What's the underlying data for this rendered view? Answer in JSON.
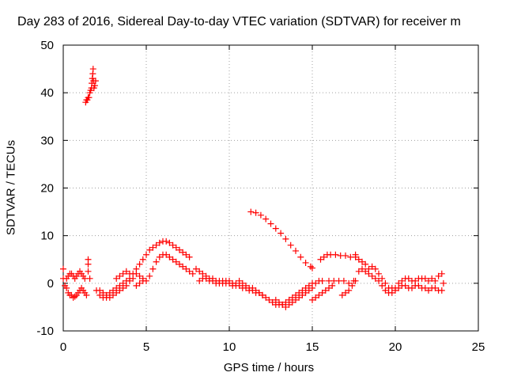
{
  "chart_data": {
    "type": "scatter",
    "title": "Day 283 of 2016, Sidereal Day-to-day VTEC variation (SDTVAR) for receiver m",
    "xlabel": "GPS time / hours",
    "ylabel": "SDTVAR / TECUs",
    "xlim": [
      0,
      25
    ],
    "ylim": [
      -10,
      50
    ],
    "x_ticks": [
      "0",
      "5",
      "10",
      "15",
      "20",
      "25"
    ],
    "y_ticks": [
      "-10",
      "0",
      "10",
      "20",
      "30",
      "40",
      "50"
    ],
    "x_tick_values": [
      0,
      5,
      10,
      15,
      20,
      25
    ],
    "y_tick_values": [
      -10,
      0,
      10,
      20,
      30,
      40,
      50
    ],
    "grid": true,
    "marker": "plus",
    "color": "#ff0000",
    "series": [
      {
        "points": [
          [
            0.0,
            3.0
          ],
          [
            0.0,
            1.0
          ],
          [
            0.1,
            -0.5
          ],
          [
            0.2,
            -1.0
          ],
          [
            0.3,
            -2.0
          ],
          [
            0.4,
            -2.5
          ],
          [
            0.5,
            -2.5
          ],
          [
            0.6,
            -3.0
          ],
          [
            0.7,
            -2.8
          ],
          [
            0.8,
            -2.5
          ],
          [
            0.9,
            -2.0
          ],
          [
            1.0,
            -1.5
          ],
          [
            1.1,
            -1.0
          ],
          [
            1.2,
            -1.5
          ],
          [
            1.3,
            -2.0
          ],
          [
            1.4,
            -2.5
          ],
          [
            0.2,
            1.0
          ],
          [
            0.3,
            1.5
          ],
          [
            0.4,
            2.0
          ],
          [
            0.5,
            2.0
          ],
          [
            0.6,
            1.5
          ],
          [
            0.7,
            1.0
          ],
          [
            0.8,
            1.5
          ],
          [
            0.9,
            2.0
          ],
          [
            1.0,
            2.5
          ],
          [
            1.1,
            2.0
          ],
          [
            1.2,
            1.5
          ],
          [
            1.3,
            1.0
          ],
          [
            1.5,
            4.0
          ],
          [
            1.5,
            5.0
          ],
          [
            1.5,
            2.5
          ],
          [
            1.6,
            1.0
          ],
          [
            1.35,
            38.0
          ],
          [
            1.4,
            38.5
          ],
          [
            1.45,
            38.5
          ],
          [
            1.5,
            39.0
          ],
          [
            1.55,
            39.0
          ],
          [
            1.6,
            40.0
          ],
          [
            1.65,
            40.5
          ],
          [
            1.7,
            41.0
          ],
          [
            1.72,
            42.0
          ],
          [
            1.75,
            43.0
          ],
          [
            1.78,
            44.0
          ],
          [
            1.8,
            45.0
          ],
          [
            1.82,
            42.5
          ],
          [
            1.85,
            41.0
          ],
          [
            1.9,
            41.5
          ],
          [
            1.95,
            42.5
          ],
          [
            2.0,
            -1.5
          ],
          [
            2.2,
            -2.5
          ],
          [
            2.4,
            -3.0
          ],
          [
            2.6,
            -2.5
          ],
          [
            2.8,
            -2.0
          ],
          [
            3.0,
            -1.5
          ],
          [
            3.2,
            -1.0
          ],
          [
            3.4,
            -0.5
          ],
          [
            3.6,
            0.0
          ],
          [
            3.8,
            0.5
          ],
          [
            4.0,
            1.0
          ],
          [
            2.2,
            -1.5
          ],
          [
            2.4,
            -2.0
          ],
          [
            2.6,
            -3.0
          ],
          [
            2.8,
            -3.0
          ],
          [
            3.0,
            -2.5
          ],
          [
            3.2,
            -2.0
          ],
          [
            3.4,
            -1.5
          ],
          [
            3.6,
            -1.0
          ],
          [
            3.8,
            -0.5
          ],
          [
            4.0,
            0.5
          ],
          [
            3.2,
            1.0
          ],
          [
            3.4,
            1.5
          ],
          [
            3.6,
            2.0
          ],
          [
            3.8,
            2.5
          ],
          [
            4.0,
            2.0
          ],
          [
            4.2,
            2.0
          ],
          [
            4.4,
            3.0
          ],
          [
            4.6,
            4.0
          ],
          [
            4.8,
            5.0
          ],
          [
            5.0,
            6.0
          ],
          [
            5.2,
            7.0
          ],
          [
            5.4,
            7.5
          ],
          [
            5.6,
            8.0
          ],
          [
            5.8,
            8.5
          ],
          [
            6.0,
            8.8
          ],
          [
            6.2,
            8.8
          ],
          [
            6.4,
            8.5
          ],
          [
            6.6,
            8.0
          ],
          [
            6.8,
            7.5
          ],
          [
            7.0,
            7.0
          ],
          [
            7.2,
            6.5
          ],
          [
            7.4,
            6.0
          ],
          [
            7.6,
            5.5
          ],
          [
            4.2,
            1.0
          ],
          [
            4.4,
            2.0
          ],
          [
            4.6,
            1.5
          ],
          [
            4.8,
            1.0
          ],
          [
            5.0,
            0.5
          ],
          [
            5.2,
            1.5
          ],
          [
            5.4,
            3.0
          ],
          [
            5.6,
            4.5
          ],
          [
            5.8,
            5.5
          ],
          [
            6.0,
            6.0
          ],
          [
            6.2,
            6.0
          ],
          [
            6.4,
            5.5
          ],
          [
            6.6,
            5.0
          ],
          [
            6.8,
            4.5
          ],
          [
            7.0,
            4.0
          ],
          [
            7.2,
            3.5
          ],
          [
            7.4,
            3.0
          ],
          [
            7.6,
            2.5
          ],
          [
            7.8,
            2.0
          ],
          [
            4.4,
            -0.5
          ],
          [
            4.6,
            0.0
          ],
          [
            4.8,
            0.5
          ],
          [
            8.0,
            3.0
          ],
          [
            8.2,
            2.5
          ],
          [
            8.4,
            2.0
          ],
          [
            8.6,
            1.5
          ],
          [
            8.8,
            1.0
          ],
          [
            9.0,
            1.0
          ],
          [
            9.2,
            0.5
          ],
          [
            9.4,
            0.5
          ],
          [
            9.6,
            0.0
          ],
          [
            9.8,
            0.0
          ],
          [
            10.0,
            0.0
          ],
          [
            10.2,
            -0.5
          ],
          [
            10.4,
            -0.5
          ],
          [
            10.6,
            -0.5
          ],
          [
            10.8,
            -1.0
          ],
          [
            11.0,
            -1.0
          ],
          [
            11.2,
            -1.5
          ],
          [
            11.4,
            -1.5
          ],
          [
            11.6,
            -2.0
          ],
          [
            11.8,
            -2.0
          ],
          [
            12.0,
            -2.5
          ],
          [
            12.2,
            -3.0
          ],
          [
            12.4,
            -3.5
          ],
          [
            12.6,
            -4.0
          ],
          [
            12.8,
            -4.5
          ],
          [
            13.0,
            -4.5
          ],
          [
            13.2,
            -4.5
          ],
          [
            13.4,
            -4.0
          ],
          [
            13.6,
            -3.5
          ],
          [
            8.2,
            0.5
          ],
          [
            8.4,
            1.0
          ],
          [
            8.6,
            1.0
          ],
          [
            8.8,
            0.5
          ],
          [
            9.0,
            0.5
          ],
          [
            9.2,
            0.0
          ],
          [
            9.4,
            0.0
          ],
          [
            9.6,
            0.5
          ],
          [
            9.8,
            0.5
          ],
          [
            10.0,
            0.5
          ],
          [
            10.2,
            0.0
          ],
          [
            10.4,
            0.0
          ],
          [
            10.6,
            0.5
          ],
          [
            10.8,
            0.0
          ],
          [
            11.0,
            -0.5
          ],
          [
            11.2,
            -1.0
          ],
          [
            11.4,
            -1.0
          ],
          [
            11.6,
            -1.5
          ],
          [
            11.8,
            -2.0
          ],
          [
            12.0,
            -2.5
          ],
          [
            11.3,
            15.0
          ],
          [
            11.6,
            14.8
          ],
          [
            11.9,
            14.3
          ],
          [
            12.2,
            13.5
          ],
          [
            12.5,
            12.5
          ],
          [
            12.8,
            11.5
          ],
          [
            13.1,
            10.5
          ],
          [
            13.4,
            9.3
          ],
          [
            13.7,
            8.0
          ],
          [
            14.0,
            6.8
          ],
          [
            14.3,
            5.5
          ],
          [
            14.6,
            4.3
          ],
          [
            14.9,
            3.5
          ],
          [
            15.0,
            3.2
          ],
          [
            12.8,
            -3.5
          ],
          [
            13.0,
            -4.0
          ],
          [
            13.2,
            -4.5
          ],
          [
            13.4,
            -5.0
          ],
          [
            13.6,
            -4.5
          ],
          [
            13.8,
            -4.0
          ],
          [
            14.0,
            -3.5
          ],
          [
            14.2,
            -3.0
          ],
          [
            14.4,
            -2.5
          ],
          [
            14.6,
            -2.0
          ],
          [
            14.8,
            -1.5
          ],
          [
            15.0,
            -1.0
          ],
          [
            13.8,
            -3.0
          ],
          [
            14.0,
            -2.5
          ],
          [
            14.2,
            -2.0
          ],
          [
            14.4,
            -1.5
          ],
          [
            14.6,
            -1.0
          ],
          [
            14.8,
            -0.5
          ],
          [
            15.0,
            0.0
          ],
          [
            15.2,
            0.0
          ],
          [
            15.4,
            0.5
          ],
          [
            15.6,
            0.5
          ],
          [
            15.0,
            -3.5
          ],
          [
            15.2,
            -3.0
          ],
          [
            15.4,
            -2.5
          ],
          [
            15.6,
            -2.0
          ],
          [
            15.8,
            -1.5
          ],
          [
            16.0,
            -1.0
          ],
          [
            16.2,
            -0.5
          ],
          [
            15.5,
            5.0
          ],
          [
            15.7,
            5.5
          ],
          [
            15.9,
            6.0
          ],
          [
            16.1,
            6.0
          ],
          [
            16.4,
            6.0
          ],
          [
            16.7,
            5.8
          ],
          [
            17.0,
            5.8
          ],
          [
            17.3,
            5.5
          ],
          [
            17.6,
            5.5
          ],
          [
            16.0,
            0.5
          ],
          [
            16.3,
            0.5
          ],
          [
            16.6,
            0.5
          ],
          [
            16.9,
            0.5
          ],
          [
            17.2,
            0.0
          ],
          [
            17.5,
            0.5
          ],
          [
            16.8,
            -2.5
          ],
          [
            17.0,
            -2.0
          ],
          [
            17.2,
            -1.5
          ],
          [
            17.4,
            -0.5
          ],
          [
            17.6,
            0.5
          ],
          [
            17.6,
            6.0
          ],
          [
            17.8,
            5.0
          ],
          [
            18.0,
            4.5
          ],
          [
            18.2,
            4.0
          ],
          [
            18.4,
            3.0
          ],
          [
            18.6,
            3.5
          ],
          [
            18.8,
            3.0
          ],
          [
            19.0,
            2.0
          ],
          [
            19.2,
            1.0
          ],
          [
            19.4,
            0.0
          ],
          [
            19.6,
            -1.0
          ],
          [
            19.8,
            -1.0
          ],
          [
            20.0,
            -1.0
          ],
          [
            20.2,
            0.0
          ],
          [
            20.4,
            0.5
          ],
          [
            20.6,
            1.0
          ],
          [
            20.8,
            1.0
          ],
          [
            21.0,
            0.5
          ],
          [
            21.2,
            0.5
          ],
          [
            21.4,
            1.0
          ],
          [
            21.6,
            1.0
          ],
          [
            21.8,
            1.0
          ],
          [
            22.0,
            0.5
          ],
          [
            22.2,
            1.0
          ],
          [
            22.4,
            0.5
          ],
          [
            22.6,
            1.5
          ],
          [
            22.8,
            2.0
          ],
          [
            17.8,
            2.5
          ],
          [
            18.0,
            3.0
          ],
          [
            18.2,
            2.5
          ],
          [
            18.4,
            2.0
          ],
          [
            18.6,
            1.5
          ],
          [
            18.8,
            1.0
          ],
          [
            19.0,
            0.5
          ],
          [
            19.2,
            -0.5
          ],
          [
            19.4,
            -1.5
          ],
          [
            19.6,
            -2.0
          ],
          [
            19.8,
            -2.0
          ],
          [
            20.0,
            -1.5
          ],
          [
            20.2,
            -1.0
          ],
          [
            20.4,
            -0.5
          ],
          [
            20.6,
            -0.5
          ],
          [
            20.8,
            -1.0
          ],
          [
            21.0,
            -1.0
          ],
          [
            21.2,
            -0.5
          ],
          [
            21.4,
            -0.5
          ],
          [
            21.6,
            -1.0
          ],
          [
            21.8,
            -1.0
          ],
          [
            22.0,
            -1.5
          ],
          [
            22.2,
            -1.0
          ],
          [
            22.4,
            -1.0
          ],
          [
            22.6,
            -1.5
          ],
          [
            22.8,
            -1.5
          ],
          [
            22.9,
            0.0
          ]
        ]
      }
    ]
  }
}
